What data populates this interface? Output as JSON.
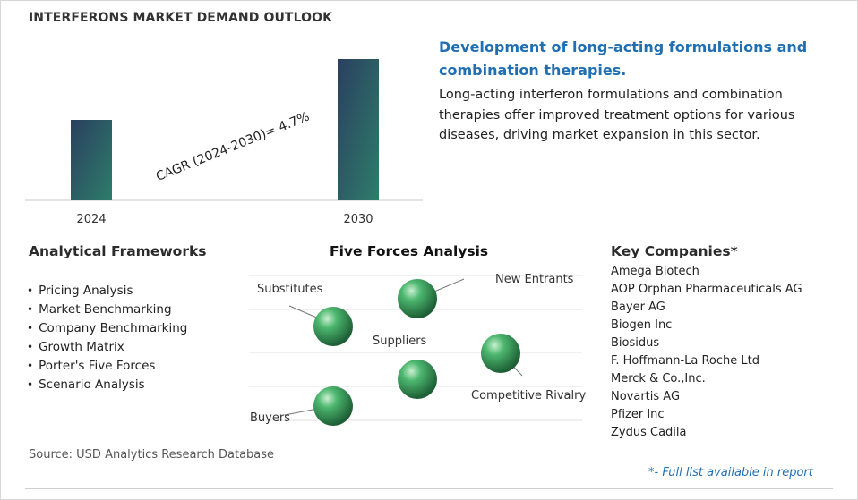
{
  "header": {
    "title": "INTERFERONS MARKET DEMAND OUTLOOK"
  },
  "chart_data": {
    "type": "bar",
    "categories": [
      "2024",
      "2030"
    ],
    "values": [
      90,
      158
    ],
    "value_scale": "relative (no values printed)",
    "ylim": [
      0,
      165
    ],
    "grid": false,
    "legend": "none",
    "annotation": "CAGR (2024-2030)=  4.7%",
    "bar_gradient": [
      "#2a3f5f",
      "#2e7d6a"
    ]
  },
  "highlight": {
    "title": "Development of long-acting formulations and combination therapies.",
    "body": "Long-acting interferon formulations and combination therapies offer improved treatment options for various diseases, driving market expansion in this sector."
  },
  "frameworks": {
    "title": "Analytical Frameworks",
    "items": [
      "Pricing Analysis",
      "Market Benchmarking",
      "Company Benchmarking",
      "Growth Matrix",
      "Porter's Five Forces",
      "Scenario Analysis"
    ]
  },
  "five_forces": {
    "title": "Five Forces Analysis",
    "labels": {
      "substitutes": "Substitutes",
      "new_entrants": "New Entrants",
      "suppliers": "Suppliers",
      "competitive_rivalry": "Competitive Rivalry",
      "buyers": "Buyers"
    },
    "sphere_color": "#3aa060"
  },
  "companies": {
    "title": "Key Companies*",
    "items": [
      "Amega Biotech",
      "AOP Orphan Pharmaceuticals AG",
      "Bayer AG",
      "Biogen Inc",
      "Biosidus",
      "F. Hoffmann-La Roche Ltd",
      "Merck & Co.,Inc.",
      "Novartis AG",
      "Pfizer Inc",
      "Zydus Cadila"
    ]
  },
  "footer": {
    "source": "Source: USD Analytics Research Database",
    "note": "*- Full list available in report"
  }
}
